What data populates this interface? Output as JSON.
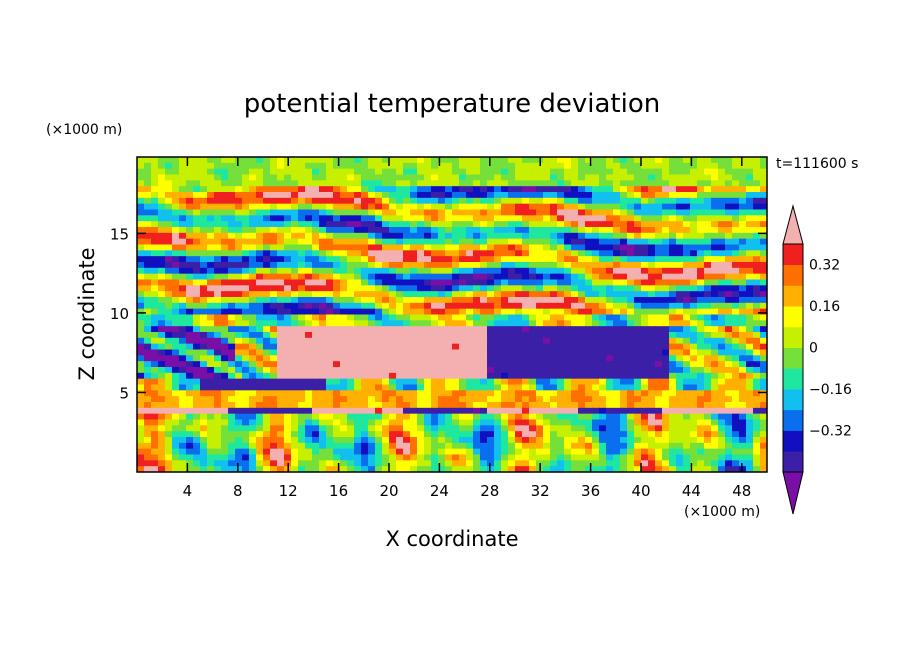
{
  "chart_data": {
    "type": "heatmap",
    "title": "potential temperature deviation",
    "time_label": "t=111600 s",
    "xlabel": "X coordinate",
    "ylabel": "Z coordinate",
    "x_unit": "(×1000 m)",
    "y_unit": "(×1000 m)",
    "xlim": [
      0,
      50
    ],
    "ylim": [
      0,
      19.8
    ],
    "x_ticks": [
      "4",
      "8",
      "12",
      "16",
      "20",
      "24",
      "28",
      "32",
      "36",
      "40",
      "44",
      "48"
    ],
    "y_ticks": [
      "5",
      "10",
      "15"
    ],
    "colorbar": {
      "levels": [
        -0.48,
        -0.4,
        -0.32,
        -0.24,
        -0.16,
        -0.08,
        0,
        0.08,
        0.16,
        0.24,
        0.32,
        0.4
      ],
      "tick_labels": [
        "0.32",
        "0.16",
        "0",
        "−0.16",
        "−0.32"
      ],
      "tick_values": [
        0.32,
        0.16,
        0,
        -0.16,
        -0.32
      ],
      "colors": [
        "#7a0fa8",
        "#3b1fa6",
        "#1010c0",
        "#0a6fee",
        "#12c0f0",
        "#1ee8a0",
        "#76e03a",
        "#c6f000",
        "#ffff00",
        "#ffb000",
        "#ff7000",
        "#f02020",
        "#f4b0b0"
      ],
      "extend": "both"
    },
    "layers": [
      {
        "z_range": [
          18.0,
          19.8
        ],
        "pattern": "near zero, alternating green/cyan patches"
      },
      {
        "z_range": [
          10.0,
          18.0
        ],
        "pattern": "wavy alternating warm (pink/red) and cold (purple/blue) bands"
      },
      {
        "z_range": [
          6.0,
          9.0
        ],
        "pattern": "large warm anomaly (pink) at x=10-30, cold (purple) at x=28-42"
      },
      {
        "z_range": [
          5.0,
          6.0
        ],
        "pattern": "cold band (purple) at x=5-15"
      },
      {
        "z_range": [
          4.1,
          5.3
        ],
        "pattern": "near-uniform yellow/orange layer"
      },
      {
        "z_range": [
          3.6,
          4.1
        ],
        "pattern": "pink and purple alternating strip"
      },
      {
        "z_range": [
          0,
          3.6
        ],
        "pattern": "convective plumes: orange/red columns in green/cyan background"
      }
    ]
  }
}
